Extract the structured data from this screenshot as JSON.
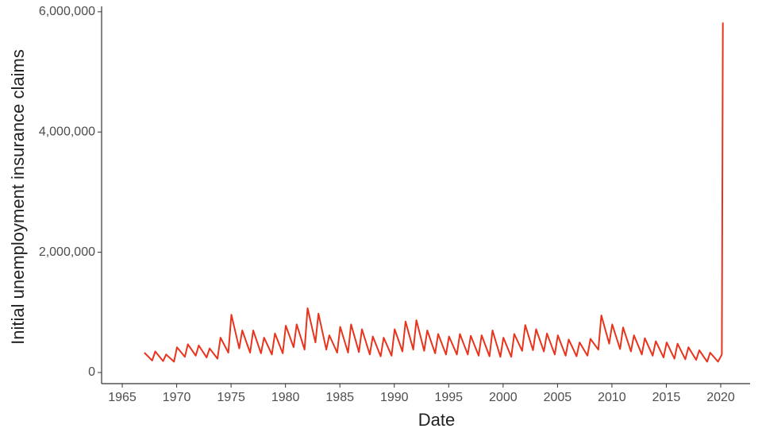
{
  "chart_data": {
    "type": "line",
    "x_label": "Date",
    "y_label": "Initial unemployment insurance claims",
    "x": [
      1967.03,
      1967.75,
      1968.03,
      1968.75,
      1969.03,
      1969.75,
      1970.03,
      1970.75,
      1971.03,
      1971.75,
      1972.03,
      1972.75,
      1973.03,
      1973.75,
      1974.03,
      1974.75,
      1975.03,
      1975.75,
      1976.03,
      1976.75,
      1977.03,
      1977.75,
      1978.03,
      1978.75,
      1979.03,
      1979.75,
      1980.03,
      1980.75,
      1981.03,
      1981.75,
      1982.03,
      1982.75,
      1983.03,
      1983.75,
      1984.03,
      1984.75,
      1985.03,
      1985.75,
      1986.03,
      1986.75,
      1987.03,
      1987.75,
      1988.03,
      1988.75,
      1989.03,
      1989.75,
      1990.03,
      1990.75,
      1991.03,
      1991.75,
      1992.03,
      1992.75,
      1993.03,
      1993.75,
      1994.03,
      1994.75,
      1995.03,
      1995.75,
      1996.03,
      1996.75,
      1997.03,
      1997.75,
      1998.03,
      1998.75,
      1999.03,
      1999.75,
      2000.03,
      2000.75,
      2001.03,
      2001.75,
      2002.03,
      2002.75,
      2003.03,
      2003.75,
      2004.03,
      2004.75,
      2005.03,
      2005.75,
      2006.03,
      2006.75,
      2007.03,
      2007.75,
      2008.03,
      2008.75,
      2009.03,
      2009.75,
      2010.03,
      2010.75,
      2011.03,
      2011.75,
      2012.03,
      2012.75,
      2013.03,
      2013.75,
      2014.03,
      2014.75,
      2015.03,
      2015.75,
      2016.03,
      2016.75,
      2017.03,
      2017.75,
      2018.03,
      2018.75,
      2019.03,
      2019.75,
      2020.1,
      2020.2
    ],
    "series": [
      {
        "name": "Initial claims",
        "color": "#e8341c",
        "values": [
          330000,
          200000,
          350000,
          190000,
          300000,
          180000,
          420000,
          260000,
          470000,
          280000,
          450000,
          250000,
          400000,
          230000,
          580000,
          330000,
          960000,
          400000,
          700000,
          330000,
          700000,
          320000,
          580000,
          300000,
          650000,
          320000,
          780000,
          420000,
          800000,
          380000,
          1070000,
          500000,
          980000,
          380000,
          620000,
          330000,
          760000,
          330000,
          800000,
          340000,
          720000,
          300000,
          600000,
          270000,
          580000,
          280000,
          720000,
          350000,
          850000,
          380000,
          870000,
          360000,
          700000,
          320000,
          640000,
          300000,
          600000,
          300000,
          640000,
          300000,
          610000,
          280000,
          620000,
          270000,
          700000,
          260000,
          580000,
          260000,
          640000,
          360000,
          790000,
          370000,
          720000,
          350000,
          650000,
          300000,
          620000,
          280000,
          550000,
          270000,
          500000,
          280000,
          560000,
          380000,
          950000,
          480000,
          800000,
          390000,
          750000,
          350000,
          620000,
          300000,
          570000,
          280000,
          520000,
          250000,
          500000,
          230000,
          480000,
          220000,
          420000,
          210000,
          370000,
          180000,
          330000,
          180000,
          300000,
          5820000
        ]
      }
    ],
    "xlim": [
      1963.1,
      2022.7
    ],
    "xticks": [
      1965,
      1970,
      1975,
      1980,
      1985,
      1990,
      1995,
      2000,
      2005,
      2010,
      2015,
      2020
    ],
    "ylim": [
      -185000,
      6090000
    ],
    "yticks": [
      0,
      {
        "value": 2000000,
        "label": "2,000,000"
      },
      {
        "value": 4000000,
        "label": "4,000,000"
      },
      {
        "value": 6000000,
        "label": "6,000,000"
      }
    ],
    "grid": false
  }
}
